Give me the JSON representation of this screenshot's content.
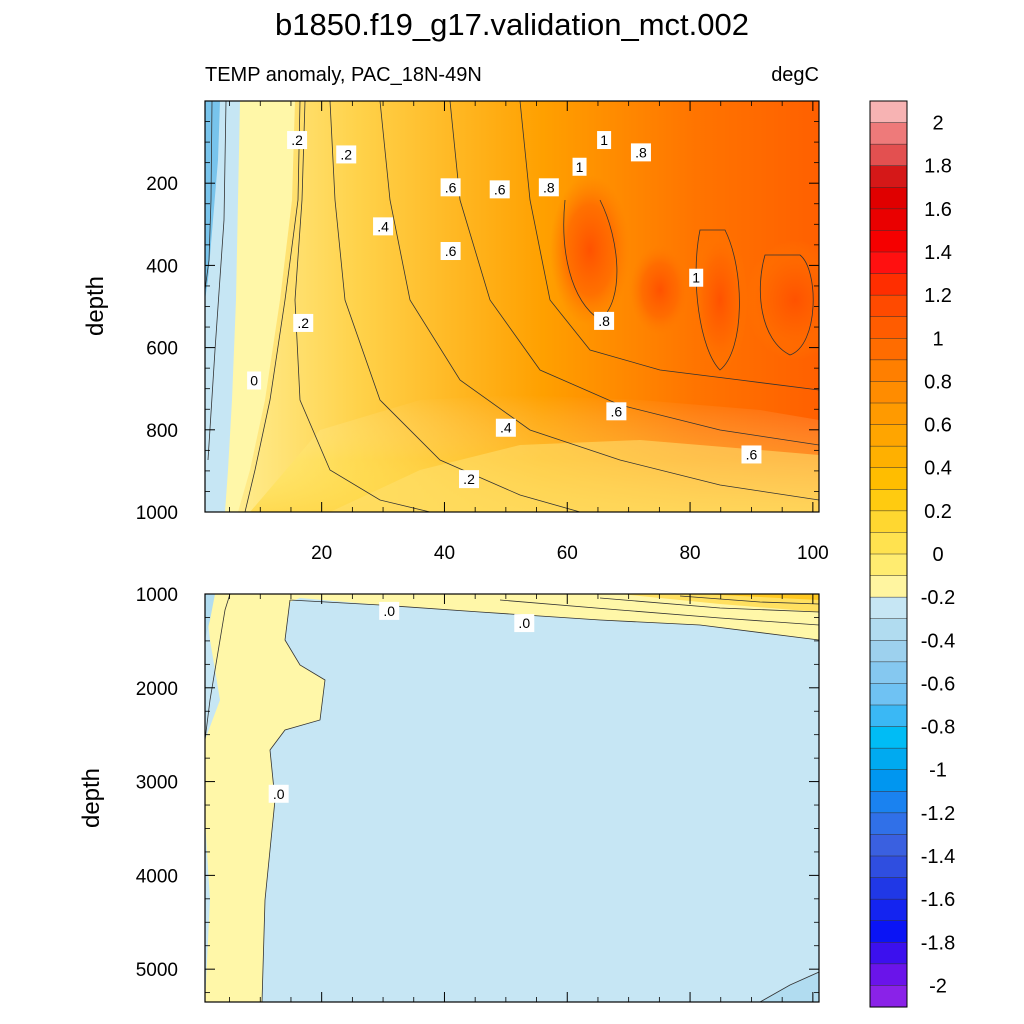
{
  "title": "b1850.f19_g17.validation_mct.002",
  "subtitle_left": "TEMP anomaly, PAC_18N-49N",
  "subtitle_right": "degC",
  "chart_data": [
    {
      "type": "heatmap",
      "panel": "upper",
      "xlabel": "",
      "ylabel": "depth",
      "x_range": [
        1,
        101
      ],
      "y_range": [
        1000,
        0
      ],
      "x_ticks": [
        20,
        40,
        60,
        80,
        100
      ],
      "y_ticks": [
        200,
        400,
        600,
        800,
        1000
      ],
      "grid": false,
      "contour_labels": [
        {
          "text": ".2",
          "x": 16,
          "y": 95
        },
        {
          "text": ".2",
          "x": 24,
          "y": 130
        },
        {
          "text": "1",
          "x": 66,
          "y": 95
        },
        {
          "text": ".8",
          "x": 72,
          "y": 125
        },
        {
          "text": "1",
          "x": 62,
          "y": 160
        },
        {
          "text": ".6",
          "x": 41,
          "y": 210
        },
        {
          "text": ".6",
          "x": 49,
          "y": 215
        },
        {
          "text": ".8",
          "x": 57,
          "y": 210
        },
        {
          "text": ".4",
          "x": 30,
          "y": 305
        },
        {
          "text": ".6",
          "x": 41,
          "y": 365
        },
        {
          "text": "1",
          "x": 81,
          "y": 430
        },
        {
          "text": ".2",
          "x": 17,
          "y": 540
        },
        {
          "text": ".8",
          "x": 66,
          "y": 535
        },
        {
          "text": "0",
          "x": 9,
          "y": 680
        },
        {
          "text": ".6",
          "x": 68,
          "y": 755
        },
        {
          "text": ".4",
          "x": 50,
          "y": 795
        },
        {
          "text": ".6",
          "x": 90,
          "y": 860
        },
        {
          "text": ".2",
          "x": 44,
          "y": 920
        }
      ]
    },
    {
      "type": "heatmap",
      "panel": "lower",
      "xlabel": "",
      "ylabel": "depth",
      "x_range": [
        1,
        101
      ],
      "y_range": [
        5350,
        1000
      ],
      "x_ticks": [
        20,
        40,
        60,
        80,
        100
      ],
      "y_ticks": [
        1000,
        2000,
        3000,
        4000,
        5000
      ],
      "grid": false,
      "contour_labels": [
        {
          "text": ".0",
          "x": 31,
          "y": 1180
        },
        {
          "text": ".0",
          "x": 53,
          "y": 1310
        },
        {
          "text": ".0",
          "x": 13,
          "y": 3130
        }
      ]
    }
  ],
  "colorbar": {
    "labels": [
      "2",
      "1.8",
      "1.6",
      "1.4",
      "1.2",
      "1",
      "0.8",
      "0.6",
      "0.4",
      "0.2",
      "0",
      "-0.2",
      "-0.4",
      "-0.6",
      "-0.8",
      "-1",
      "-1.2",
      "-1.4",
      "-1.6",
      "-1.8",
      "-2"
    ],
    "colors": [
      "#f7b3b3",
      "#ee7a7a",
      "#e35050",
      "#d51818",
      "#e00000",
      "#ea0000",
      "#f50000",
      "#ff1010",
      "#ff2e00",
      "#ff4a00",
      "#ff5c00",
      "#ff6c00",
      "#ff7f00",
      "#ff8c00",
      "#ff9a00",
      "#ffa500",
      "#ffb000",
      "#ffbd00",
      "#ffcb10",
      "#ffd730",
      "#ffe24f",
      "#ffec70",
      "#fff5a0",
      "#c6e6f4",
      "#b1dcf0",
      "#9dd1ee",
      "#85c8f0",
      "#6fc2f3",
      "#3ab8f5",
      "#00bcf5",
      "#00aaf0",
      "#0096f0",
      "#1a82f0",
      "#3070e8",
      "#3a60e0",
      "#2f4ee0",
      "#2038e6",
      "#1424f0",
      "#0a14f5",
      "#3c10ee",
      "#6a14ea",
      "#8a22e8"
    ]
  }
}
